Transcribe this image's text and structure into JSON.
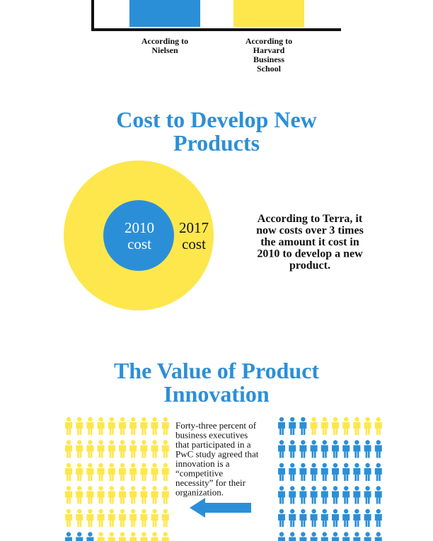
{
  "top_chart": {
    "labels": [
      [
        "According to",
        "Nielsen"
      ],
      [
        "According to",
        "Harvard",
        "Business",
        "School"
      ]
    ]
  },
  "cost_section": {
    "title": [
      "Cost to Develop New",
      "Products"
    ],
    "inner_label": [
      "2010",
      "cost"
    ],
    "outer_label": [
      "2017",
      "cost"
    ],
    "description": [
      "According to Terra, it",
      "now costs over 3 times",
      "the amount it cost in",
      "2010 to develop a new",
      "product."
    ]
  },
  "value_section": {
    "title": [
      "The Value of Product",
      "Innovation"
    ],
    "description": [
      "Forty-three percent of",
      "business executives",
      "that participated in a",
      "PwC study agreed that",
      "innovation is a",
      "“competitive",
      "necessity” for their",
      "organization."
    ]
  }
}
